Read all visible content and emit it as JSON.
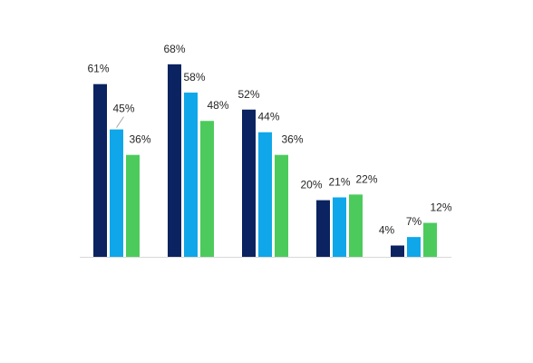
{
  "chart_data": {
    "type": "bar",
    "categories": [
      "",
      "",
      "",
      "",
      ""
    ],
    "series": [
      {
        "color": "#0B2360",
        "values": [
          61,
          68,
          52,
          20,
          4
        ]
      },
      {
        "color": "#0FA7E9",
        "values": [
          45,
          58,
          44,
          21,
          7
        ]
      },
      {
        "color": "#4CCB5C",
        "values": [
          36,
          48,
          36,
          22,
          12
        ]
      }
    ],
    "labels": [
      [
        "61%",
        "68%",
        "52%",
        "20%",
        "4%"
      ],
      [
        "45%",
        "58%",
        "44%",
        "21%",
        "7%"
      ],
      [
        "36%",
        "48%",
        "36%",
        "22%",
        "12%"
      ]
    ],
    "ylim": [
      0,
      100
    ],
    "grid": false,
    "legend": "none",
    "baseline_color": "#D9D9D9",
    "leader_line_color": "#A6A6A6"
  }
}
